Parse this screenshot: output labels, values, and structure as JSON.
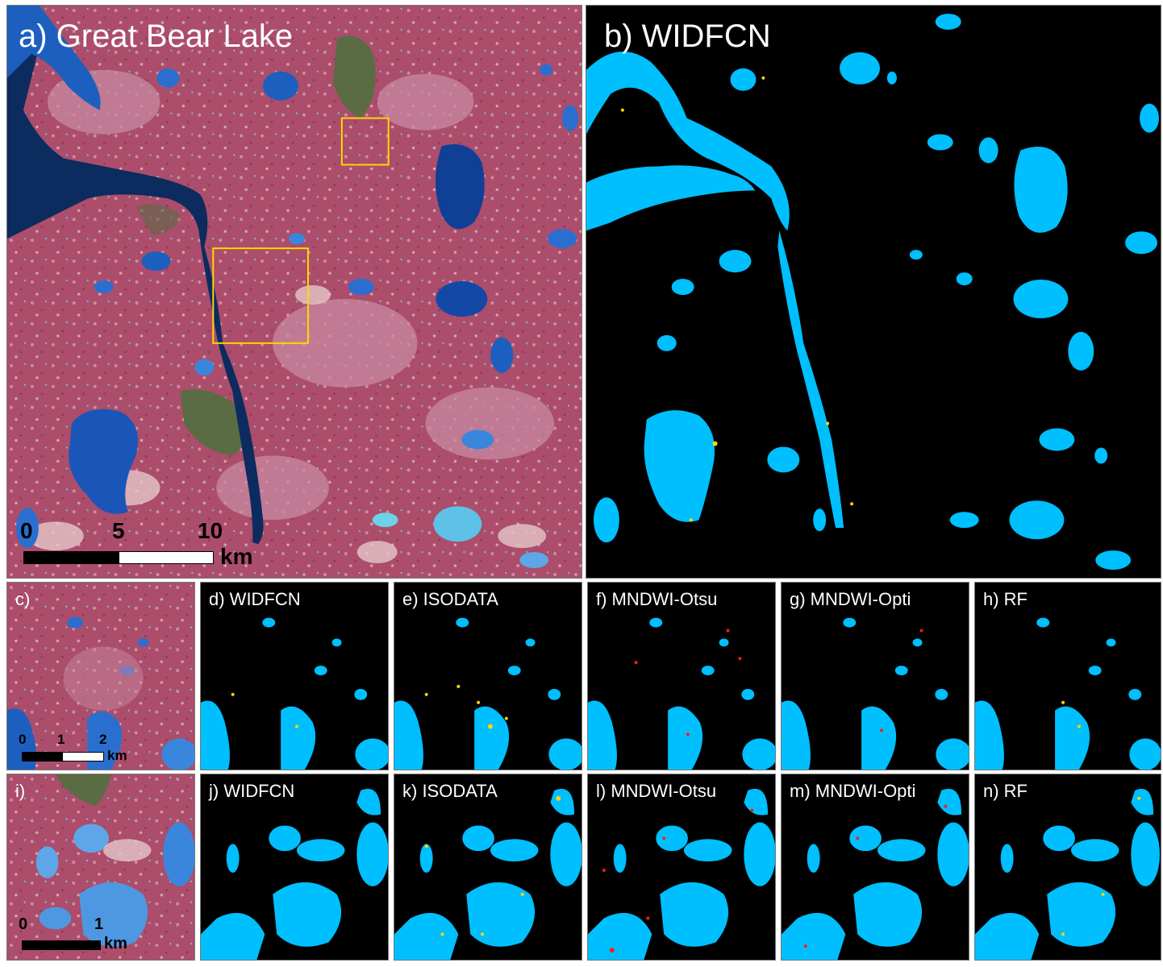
{
  "panels": {
    "a": {
      "label": "a) Great Bear Lake"
    },
    "b": {
      "label": "b) WIDFCN"
    },
    "c": {
      "label": "c)"
    },
    "d": {
      "label": "d) WIDFCN"
    },
    "e": {
      "label": "e) ISODATA"
    },
    "f": {
      "label": "f) MNDWI-Otsu"
    },
    "g": {
      "label": "g) MNDWI-Opti"
    },
    "h": {
      "label": "h) RF"
    },
    "i": {
      "label": "i)"
    },
    "j": {
      "label": "j) WIDFCN"
    },
    "k": {
      "label": "k) ISODATA"
    },
    "l": {
      "label": "l) MNDWI-Otsu"
    },
    "m": {
      "label": "m) MNDWI-Opti"
    },
    "n": {
      "label": "n) RF"
    }
  },
  "scalebars": {
    "a": {
      "ticks": [
        "0",
        "5",
        "10"
      ],
      "unit": "km"
    },
    "c": {
      "ticks": [
        "0",
        "1",
        "2"
      ],
      "unit": "km"
    },
    "i": {
      "ticks": [
        "0",
        "1"
      ],
      "unit": "km"
    }
  },
  "colors": {
    "land": "#b0506e",
    "land_light": "#c87f96",
    "lake_deep": "#0b2a66",
    "lake": "#1c5fc4",
    "lake_light": "#5fa6e8",
    "forest": "#5a6b42",
    "water_mask": "#00bfff",
    "background": "#000000",
    "omission": "#ffd700",
    "commission": "#ff1a1a",
    "inset_box": "#ffd700"
  }
}
